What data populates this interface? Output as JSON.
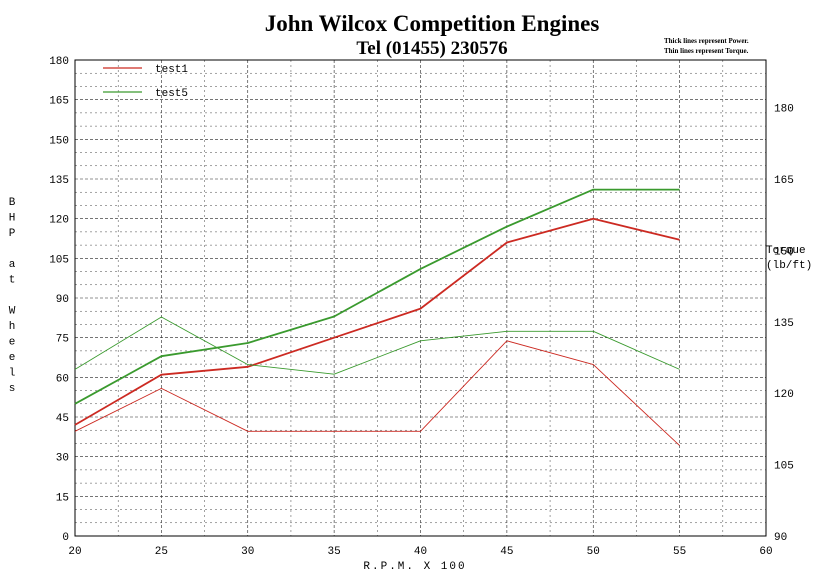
{
  "chart_data": {
    "type": "line",
    "title": "John Wilcox Competition Engines",
    "subtitle": "Tel (01455) 230576",
    "notes": [
      "Thick lines represent Power.",
      "Thin lines represent Torque."
    ],
    "xlabel": "R.P.M. X 100",
    "ylabel": "BHP at Wheels",
    "y2label": [
      "Torque",
      "(lb/ft)"
    ],
    "xlim": [
      20,
      60
    ],
    "ylim": [
      0,
      180
    ],
    "y2lim": [
      90,
      190
    ],
    "xticks": [
      20,
      25,
      30,
      35,
      40,
      45,
      50,
      55,
      60
    ],
    "yticks": [
      0,
      15,
      30,
      45,
      60,
      75,
      90,
      105,
      120,
      135,
      150,
      165,
      180
    ],
    "y2ticks": [
      90,
      105,
      120,
      135,
      150,
      165,
      180
    ],
    "grid": true,
    "legend_position": "top-left",
    "legend": [
      {
        "name": "test1",
        "color": "#cc2a22"
      },
      {
        "name": "test5",
        "color": "#3a9a2e"
      }
    ],
    "series": [
      {
        "name": "test1",
        "measure": "power",
        "color": "#cc2a22",
        "line": "thick",
        "x": [
          20,
          25,
          30,
          35,
          40,
          45,
          50,
          55
        ],
        "values": [
          42,
          61,
          64,
          75,
          86,
          111,
          120,
          112
        ]
      },
      {
        "name": "test5",
        "measure": "power",
        "color": "#3a9a2e",
        "line": "thick",
        "x": [
          20,
          25,
          30,
          35,
          40,
          45,
          50,
          55
        ],
        "values": [
          50,
          68,
          73,
          83,
          101,
          117,
          131,
          131
        ]
      },
      {
        "name": "test1",
        "measure": "torque",
        "color": "#cc2a22",
        "line": "thin",
        "x": [
          20,
          25,
          30,
          35,
          40,
          45,
          50,
          55
        ],
        "values": [
          112,
          121,
          112,
          112,
          112,
          131,
          126,
          109
        ]
      },
      {
        "name": "test5",
        "measure": "torque",
        "color": "#3a9a2e",
        "line": "thin",
        "x": [
          20,
          25,
          30,
          35,
          40,
          45,
          50,
          55
        ],
        "values": [
          125,
          136,
          126,
          124,
          131,
          133,
          133,
          125
        ]
      }
    ]
  }
}
